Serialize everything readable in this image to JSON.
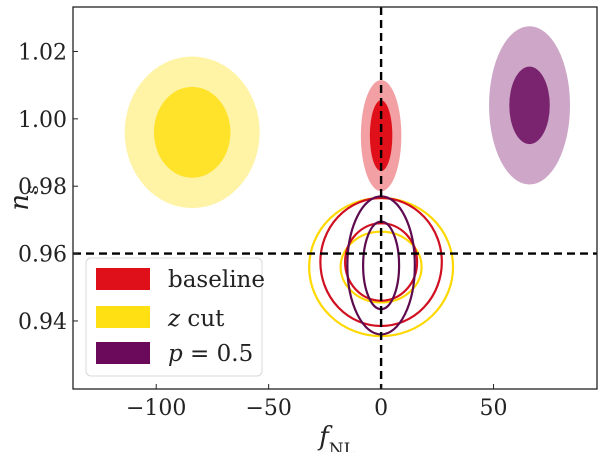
{
  "chart_data": {
    "type": "contour",
    "xlabel": "f",
    "xlabel_sub": "NL",
    "ylabel": "n",
    "ylabel_sub": "s",
    "xlim": [
      -137,
      96
    ],
    "ylim": [
      0.9198,
      1.0332
    ],
    "xticks": [
      -100,
      -50,
      0,
      50
    ],
    "xtick_labels": [
      "−100",
      "−50",
      "0",
      "50"
    ],
    "yticks": [
      0.94,
      0.96,
      0.98,
      1.0,
      1.02
    ],
    "ytick_labels": [
      "0.94",
      "0.96",
      "0.98",
      "1.00",
      "1.02"
    ],
    "reference_lines": {
      "x": 0,
      "y": 0.96,
      "style": "dashed"
    },
    "legend": {
      "placement": "lower-left",
      "entries": [
        {
          "label": "baseline",
          "color": "#e0101a"
        },
        {
          "label": "z cut",
          "color": "#ffe012"
        },
        {
          "label": "p = 0.5",
          "color": "#6b0a5a"
        }
      ]
    },
    "series": [
      {
        "name": "baseline",
        "style": "filled",
        "color_outer": "#f2a0a3",
        "color_inner": "#e0101a",
        "center": [
          0,
          0.995
        ],
        "level_95": {
          "x_halfwidth": 9,
          "y_halfwidth": 0.0165
        },
        "level_68": {
          "x_halfwidth": 5,
          "y_halfwidth": 0.0105
        }
      },
      {
        "name": "z cut",
        "style": "filled",
        "color_outer": "#fff3a6",
        "color_inner": "#ffe32a",
        "center": [
          -84,
          0.996
        ],
        "level_95": {
          "x_halfwidth": 30,
          "y_halfwidth": 0.0225
        },
        "level_68": {
          "x_halfwidth": 17,
          "y_halfwidth": 0.0135
        }
      },
      {
        "name": "p = 0.5",
        "style": "filled",
        "color_outer": "#cda6c8",
        "color_inner": "#7a2470",
        "center": [
          66,
          1.004
        ],
        "level_95": {
          "x_halfwidth": 18,
          "y_halfwidth": 0.0235
        },
        "level_68": {
          "x_halfwidth": 9,
          "y_halfwidth": 0.0115
        }
      },
      {
        "name": "z cut",
        "style": "lines",
        "color": "#ffd800",
        "center": [
          0,
          0.956
        ],
        "level_95": {
          "x_halfwidth": 32,
          "y_halfwidth": 0.0205
        },
        "level_68": {
          "x_halfwidth": 18,
          "y_halfwidth": 0.0105
        }
      },
      {
        "name": "baseline",
        "style": "lines",
        "color": "#d01020",
        "center": [
          0,
          0.9575
        ],
        "level_95": {
          "x_halfwidth": 27,
          "y_halfwidth": 0.019
        },
        "level_68": {
          "x_halfwidth": 16,
          "y_halfwidth": 0.0115
        }
      },
      {
        "name": "p = 0.5",
        "style": "lines",
        "color": "#5e0a4e",
        "center": [
          0,
          0.9565
        ],
        "level_95": {
          "x_halfwidth": 15,
          "y_halfwidth": 0.0205
        },
        "level_68": {
          "x_halfwidth": 8,
          "y_halfwidth": 0.013
        }
      }
    ]
  }
}
